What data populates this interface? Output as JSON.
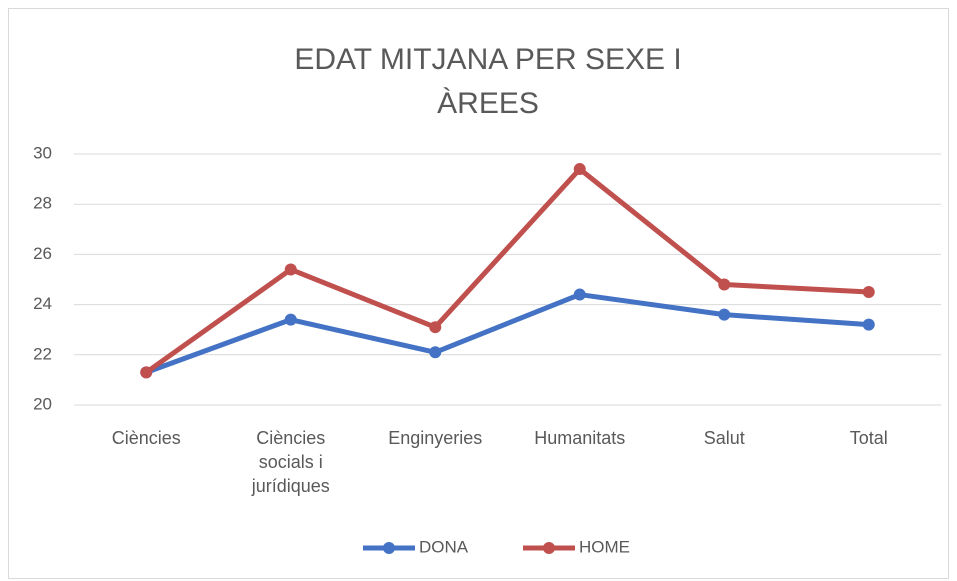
{
  "chart_data": {
    "type": "line",
    "title": "EDAT MITJANA PER SEXE I ÀREES",
    "categories": [
      "Ciències",
      "Ciències socials i jurídiques",
      "Enginyeries",
      "Humanitats",
      "Salut",
      "Total"
    ],
    "series": [
      {
        "name": "DONA",
        "color": "#4472c4",
        "values": [
          21.3,
          23.4,
          22.1,
          24.4,
          23.6,
          23.2
        ]
      },
      {
        "name": "HOME",
        "color": "#c0504d",
        "values": [
          21.3,
          25.4,
          23.1,
          29.4,
          24.8,
          24.5
        ]
      }
    ],
    "ylim": [
      20,
      30
    ],
    "yticks": [
      20,
      22,
      24,
      26,
      28,
      30
    ],
    "grid": true,
    "legend": "bottom"
  }
}
